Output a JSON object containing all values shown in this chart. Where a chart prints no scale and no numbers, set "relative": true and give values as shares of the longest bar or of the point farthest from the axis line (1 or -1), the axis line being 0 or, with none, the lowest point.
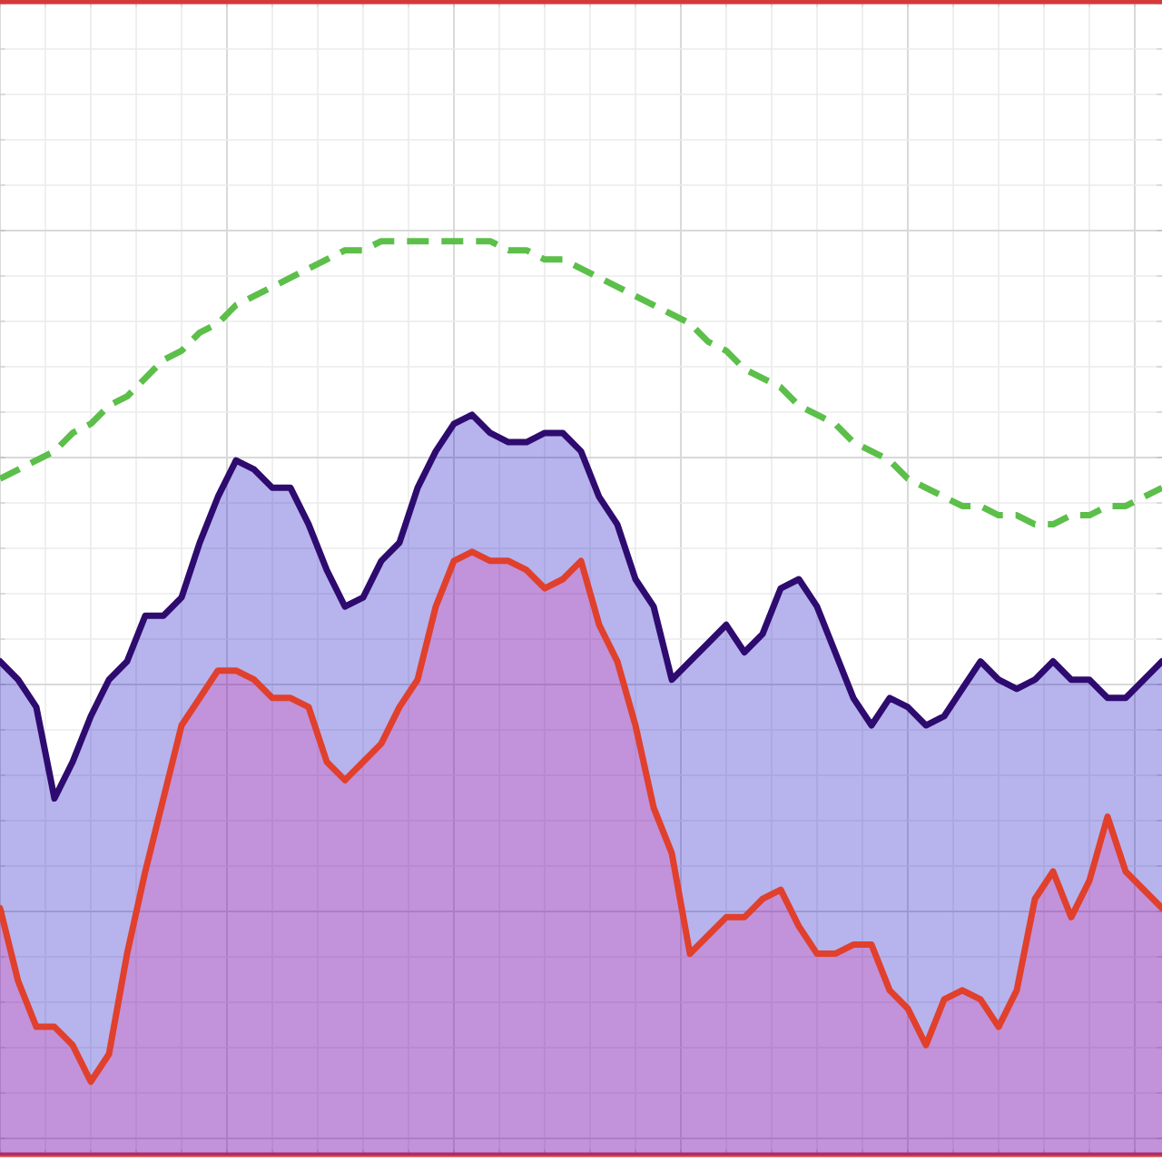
{
  "chart_data": {
    "type": "area",
    "relative": true,
    "grid": true,
    "categories": [
      null,
      null,
      null,
      null,
      null,
      null,
      null,
      null,
      null,
      null,
      null,
      null,
      null,
      null,
      null,
      null,
      null,
      null,
      null,
      null,
      null,
      null,
      null,
      null,
      null,
      null,
      null,
      null,
      null,
      null,
      null,
      null,
      null,
      null,
      null,
      null,
      null,
      null,
      null,
      null,
      null,
      null,
      null,
      null,
      null,
      null,
      null,
      null,
      null,
      null,
      null,
      null,
      null,
      null,
      null,
      null,
      null,
      null,
      null,
      null,
      null,
      null,
      null,
      null,
      null
    ],
    "series": [
      {
        "color": "#2e0b6f",
        "values": [
          0.54,
          0.52,
          0.49,
          0.39,
          0.43,
          0.48,
          0.52,
          0.54,
          0.59,
          0.59,
          0.61,
          0.67,
          0.72,
          0.76,
          0.75,
          0.73,
          0.73,
          0.69,
          0.64,
          0.6,
          0.61,
          0.65,
          0.67,
          0.73,
          0.77,
          0.8,
          0.81,
          0.79,
          0.78,
          0.78,
          0.79,
          0.79,
          0.77,
          0.72,
          0.69,
          0.63,
          0.6,
          0.52,
          0.54,
          0.56,
          0.58,
          0.55,
          0.57,
          0.62,
          0.63,
          0.6,
          0.55,
          0.5,
          0.47,
          0.5,
          0.49,
          0.47,
          0.48,
          0.51,
          0.54,
          0.52,
          0.51,
          0.52,
          0.54,
          0.52,
          0.52,
          0.5,
          0.5,
          0.52,
          0.54
        ]
      },
      {
        "color": "#e0402c",
        "values": [
          0.27,
          0.19,
          0.14,
          0.14,
          0.12,
          0.08,
          0.11,
          0.22,
          0.31,
          0.39,
          0.47,
          0.5,
          0.53,
          0.53,
          0.52,
          0.5,
          0.5,
          0.49,
          0.43,
          0.41,
          0.43,
          0.45,
          0.49,
          0.52,
          0.6,
          0.65,
          0.66,
          0.65,
          0.65,
          0.64,
          0.62,
          0.63,
          0.65,
          0.58,
          0.54,
          0.47,
          0.38,
          0.33,
          0.22,
          0.24,
          0.26,
          0.26,
          0.28,
          0.29,
          0.25,
          0.22,
          0.22,
          0.23,
          0.23,
          0.18,
          0.16,
          0.12,
          0.17,
          0.18,
          0.17,
          0.14,
          0.18,
          0.28,
          0.31,
          0.26,
          0.3,
          0.37,
          0.31,
          0.29,
          0.27
        ]
      },
      {
        "type": "line",
        "color": "#5cbf4a",
        "line_style": "dashed",
        "values": [
          0.74,
          0.75,
          0.76,
          0.77,
          0.79,
          0.8,
          0.82,
          0.83,
          0.85,
          0.87,
          0.88,
          0.9,
          0.91,
          0.93,
          0.94,
          0.95,
          0.96,
          0.97,
          0.98,
          0.99,
          0.99,
          1.0,
          1.0,
          1.0,
          1.0,
          1.0,
          1.0,
          1.0,
          0.99,
          0.99,
          0.98,
          0.98,
          0.97,
          0.96,
          0.95,
          0.94,
          0.93,
          0.92,
          0.91,
          0.89,
          0.88,
          0.86,
          0.85,
          0.84,
          0.82,
          0.81,
          0.8,
          0.78,
          0.77,
          0.76,
          0.74,
          0.73,
          0.72,
          0.71,
          0.71,
          0.7,
          0.7,
          0.69,
          0.69,
          0.7,
          0.7,
          0.71,
          0.71,
          0.72,
          0.73
        ]
      }
    ]
  }
}
